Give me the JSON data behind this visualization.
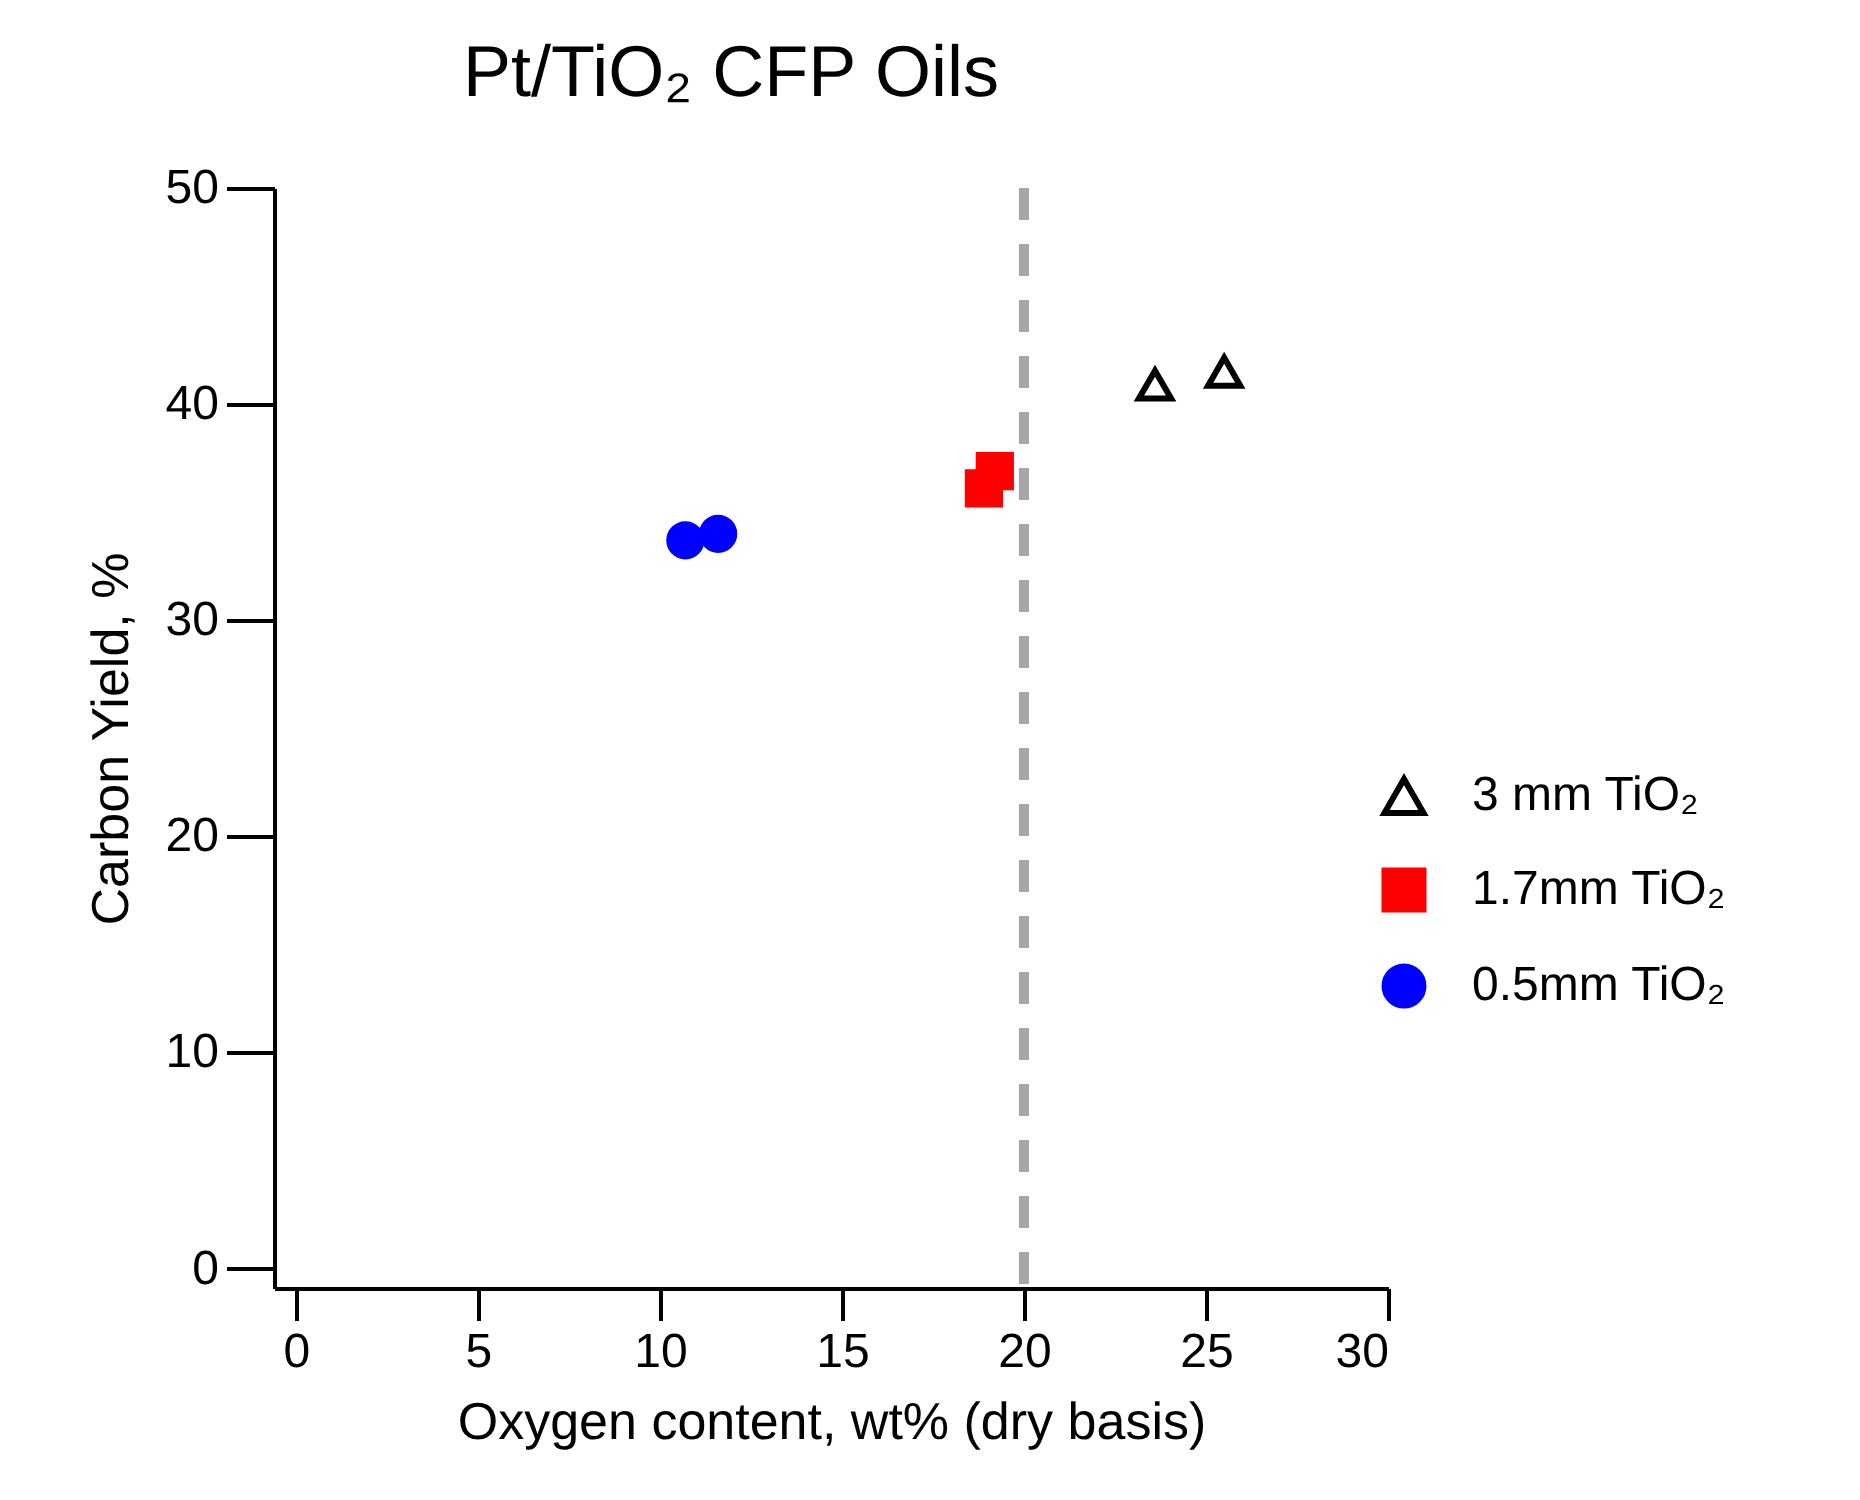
{
  "chart_data": {
    "type": "scatter",
    "title": "Pt/TiO₂ CFP Oils",
    "xlabel": "Oxygen content, wt% (dry basis)",
    "ylabel": "Carbon Yield, %",
    "xlim": [
      -0.6,
      30
    ],
    "xticks": [
      0,
      5,
      10,
      15,
      20,
      25,
      30
    ],
    "ylim": [
      -0.9,
      50
    ],
    "yticks": [
      0,
      10,
      20,
      30,
      40,
      50
    ],
    "grid": false,
    "legend": "right",
    "series": [
      {
        "name": "3 mm TiO₂",
        "color": "#000000",
        "marker": "triangle",
        "x": [
          23.6,
          25.5
        ],
        "values": [
          40.9,
          41.5
        ]
      },
      {
        "name": "1.7mm TiO₂",
        "color": "#ff0000",
        "marker": "square",
        "x": [
          18.9,
          19.2
        ],
        "values": [
          36.1,
          36.9
        ]
      },
      {
        "name": "0.5mm TiO₂",
        "color": "#0000ff",
        "marker": "circle",
        "x": [
          10.7,
          11.6
        ],
        "values": [
          33.7,
          34.0
        ]
      }
    ],
    "ref_lines": [
      {
        "axis": "x",
        "value": 20,
        "color": "#a6a6a6",
        "line_style": "dashed"
      }
    ]
  }
}
